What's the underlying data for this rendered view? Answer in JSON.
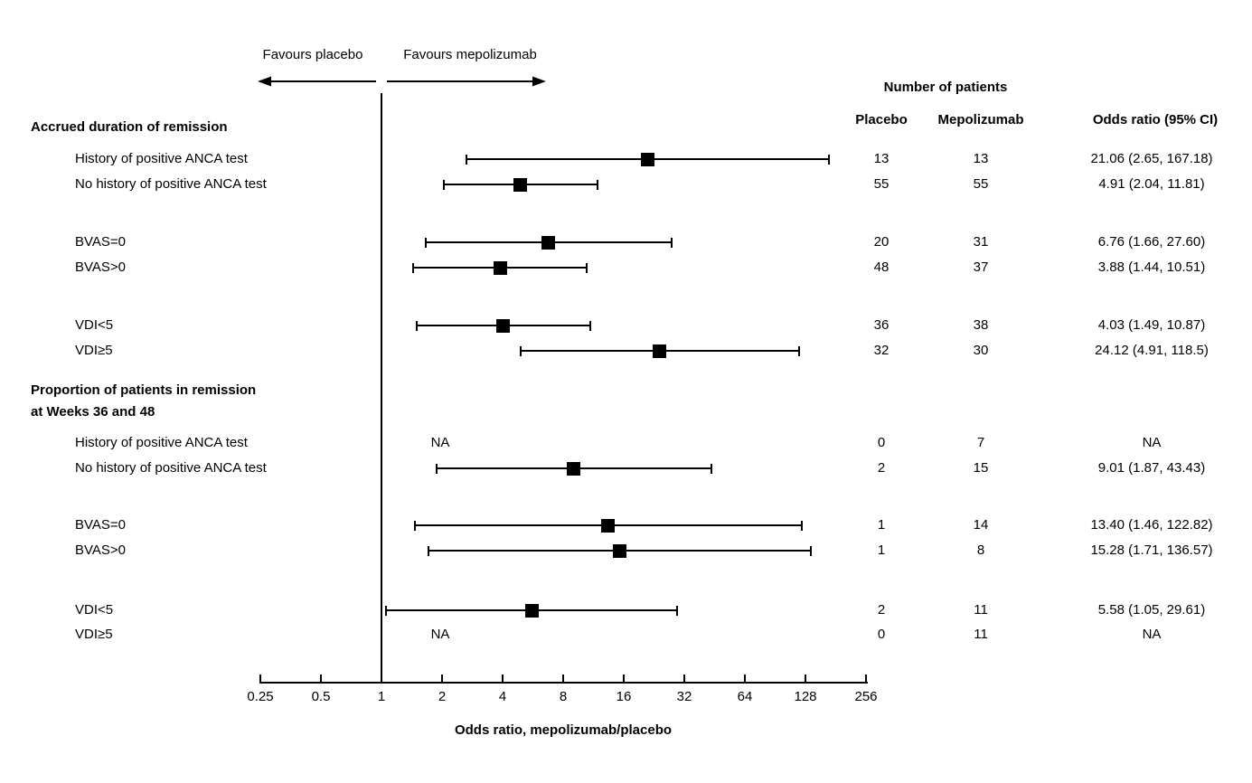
{
  "figure": {
    "favours_left": "Favours placebo",
    "favours_right": "Favours mepolizumab",
    "number_of_patients_header": "Number of patients",
    "col_placebo": "Placebo",
    "col_mepolizumab": "Mepolizumab",
    "col_or": "Odds ratio (95% CI)",
    "na_text": "NA"
  },
  "chart_data": {
    "type": "forest",
    "title": "",
    "xlabel": "Odds ratio, mepolizumab/placebo",
    "x_scale": "log2",
    "x_ticks": [
      0.25,
      0.5,
      1,
      2,
      4,
      8,
      16,
      32,
      64,
      128,
      256
    ],
    "x_range": [
      0.25,
      256
    ],
    "reference_line": 1,
    "marker_color": "#000000",
    "legend": {
      "left_arrow": "Favours placebo",
      "right_arrow": "Favours mepolizumab"
    },
    "columns": [
      "Placebo",
      "Mepolizumab",
      "Odds ratio (95% CI)"
    ],
    "sections": [
      {
        "heading_lines": [
          "Accrued duration of remission"
        ],
        "rows": [
          {
            "label": "History of positive ANCA test",
            "placebo": "13",
            "mepolizumab": "13",
            "or": 21.06,
            "ci_low": 2.65,
            "ci_high": 167.18,
            "or_text": "21.06 (2.65, 167.18)"
          },
          {
            "label": "No history of positive ANCA test",
            "placebo": "55",
            "mepolizumab": "55",
            "or": 4.91,
            "ci_low": 2.04,
            "ci_high": 11.81,
            "or_text": "4.91 (2.04, 11.81)"
          },
          {
            "label": "BVAS=0",
            "placebo": "20",
            "mepolizumab": "31",
            "or": 6.76,
            "ci_low": 1.66,
            "ci_high": 27.6,
            "or_text": "6.76 (1.66, 27.60)"
          },
          {
            "label": "BVAS>0",
            "placebo": "48",
            "mepolizumab": "37",
            "or": 3.88,
            "ci_low": 1.44,
            "ci_high": 10.51,
            "or_text": "3.88 (1.44, 10.51)"
          },
          {
            "label": "VDI<5",
            "placebo": "36",
            "mepolizumab": "38",
            "or": 4.03,
            "ci_low": 1.49,
            "ci_high": 10.87,
            "or_text": "4.03 (1.49, 10.87)"
          },
          {
            "label": "VDI≥5",
            "placebo": "32",
            "mepolizumab": "30",
            "or": 24.12,
            "ci_low": 4.91,
            "ci_high": 118.5,
            "or_text": "24.12 (4.91, 118.5)"
          }
        ]
      },
      {
        "heading_lines": [
          "Proportion of patients in remission",
          "at Weeks 36 and 48"
        ],
        "rows": [
          {
            "label": "History of positive ANCA test",
            "placebo": "0",
            "mepolizumab": "7",
            "or": null,
            "ci_low": null,
            "ci_high": null,
            "or_text": "NA"
          },
          {
            "label": "No history of positive ANCA test",
            "placebo": "2",
            "mepolizumab": "15",
            "or": 9.01,
            "ci_low": 1.87,
            "ci_high": 43.43,
            "or_text": "9.01 (1.87, 43.43)"
          },
          {
            "label": "BVAS=0",
            "placebo": "1",
            "mepolizumab": "14",
            "or": 13.4,
            "ci_low": 1.46,
            "ci_high": 122.82,
            "or_text": "13.40 (1.46, 122.82)"
          },
          {
            "label": "BVAS>0",
            "placebo": "1",
            "mepolizumab": "8",
            "or": 15.28,
            "ci_low": 1.71,
            "ci_high": 136.57,
            "or_text": "15.28 (1.71, 136.57)"
          },
          {
            "label": "VDI<5",
            "placebo": "2",
            "mepolizumab": "11",
            "or": 5.58,
            "ci_low": 1.05,
            "ci_high": 29.61,
            "or_text": "5.58 (1.05, 29.61)"
          },
          {
            "label": "VDI≥5",
            "placebo": "0",
            "mepolizumab": "11",
            "or": null,
            "ci_low": null,
            "ci_high": null,
            "or_text": "NA"
          }
        ]
      }
    ]
  }
}
